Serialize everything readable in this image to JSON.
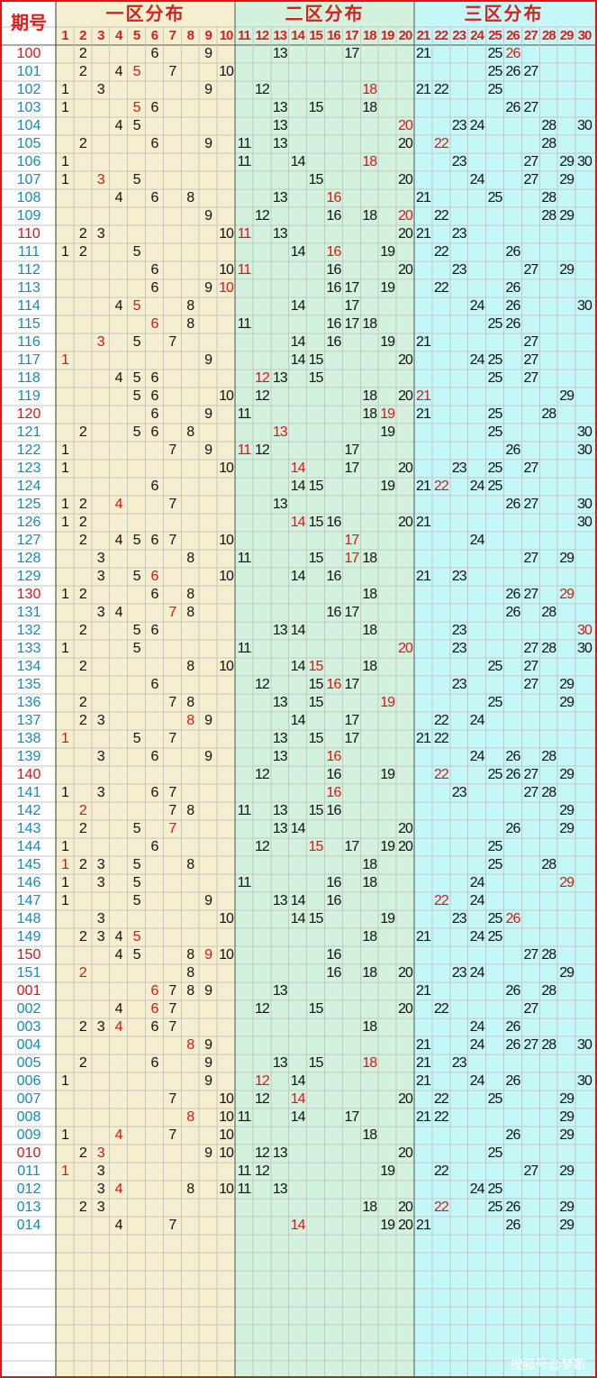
{
  "header": {
    "corner_label": "期号",
    "zones": [
      {
        "title": "一区分布",
        "start": 1,
        "end": 10,
        "bg": "#f6efcf"
      },
      {
        "title": "二区分布",
        "start": 11,
        "end": 20,
        "bg": "#d3f2dd"
      },
      {
        "title": "三区分布",
        "start": 21,
        "end": 30,
        "bg": "#c4f7f7"
      }
    ],
    "columns": [
      "1",
      "2",
      "3",
      "4",
      "5",
      "6",
      "7",
      "8",
      "9",
      "10",
      "11",
      "12",
      "13",
      "14",
      "15",
      "16",
      "17",
      "18",
      "19",
      "20",
      "21",
      "22",
      "23",
      "24",
      "25",
      "26",
      "27",
      "28",
      "29",
      "30"
    ]
  },
  "colors": {
    "border": "#e51010",
    "title_red": "#d81e1e",
    "header_blue": "#0a2a9a",
    "period_blue": "#0f8cc0",
    "period_red": "#e51010",
    "number": "#111111",
    "number_red": "#e51010",
    "grid": "#c6c6c6",
    "period_bg": "#ffffff"
  },
  "rows": [
    {
      "period": "100",
      "hot": true,
      "nums": [
        2,
        6,
        9,
        13,
        17,
        21,
        25,
        26
      ],
      "red": [
        26
      ]
    },
    {
      "period": "101",
      "hot": false,
      "nums": [
        2,
        4,
        5,
        7,
        10,
        25,
        26,
        27
      ],
      "red": [
        5
      ]
    },
    {
      "period": "102",
      "hot": false,
      "nums": [
        1,
        3,
        9,
        12,
        18,
        21,
        22,
        25
      ],
      "red": [
        18
      ]
    },
    {
      "period": "103",
      "hot": false,
      "nums": [
        1,
        5,
        6,
        13,
        15,
        18,
        26,
        27
      ],
      "red": [
        5
      ]
    },
    {
      "period": "104",
      "hot": false,
      "nums": [
        4,
        5,
        13,
        20,
        23,
        24,
        28,
        30
      ],
      "red": [
        20
      ]
    },
    {
      "period": "105",
      "hot": false,
      "nums": [
        2,
        6,
        9,
        11,
        13,
        20,
        22,
        28
      ],
      "red": [
        22
      ]
    },
    {
      "period": "106",
      "hot": false,
      "nums": [
        1,
        11,
        14,
        18,
        23,
        27,
        29,
        30
      ],
      "red": [
        18
      ]
    },
    {
      "period": "107",
      "hot": false,
      "nums": [
        1,
        3,
        5,
        15,
        20,
        24,
        27,
        29
      ],
      "red": [
        3
      ]
    },
    {
      "period": "108",
      "hot": false,
      "nums": [
        4,
        6,
        8,
        13,
        16,
        21,
        25,
        28
      ],
      "red": [
        16
      ]
    },
    {
      "period": "109",
      "hot": false,
      "nums": [
        9,
        12,
        16,
        18,
        20,
        22,
        28,
        29
      ],
      "red": [
        20
      ]
    },
    {
      "period": "110",
      "hot": true,
      "nums": [
        2,
        3,
        10,
        11,
        13,
        20,
        21,
        23
      ],
      "red": [
        11
      ]
    },
    {
      "period": "111",
      "hot": false,
      "nums": [
        1,
        2,
        5,
        14,
        16,
        19,
        22,
        26
      ],
      "red": [
        16
      ]
    },
    {
      "period": "112",
      "hot": false,
      "nums": [
        6,
        10,
        11,
        16,
        20,
        23,
        27,
        29
      ],
      "red": [
        11
      ]
    },
    {
      "period": "113",
      "hot": false,
      "nums": [
        6,
        9,
        10,
        16,
        17,
        19,
        22,
        26
      ],
      "red": [
        10
      ]
    },
    {
      "period": "114",
      "hot": false,
      "nums": [
        4,
        5,
        8,
        14,
        17,
        24,
        26,
        30
      ],
      "red": [
        5
      ]
    },
    {
      "period": "115",
      "hot": false,
      "nums": [
        6,
        8,
        11,
        16,
        17,
        18,
        25,
        26
      ],
      "red": [
        6
      ]
    },
    {
      "period": "116",
      "hot": false,
      "nums": [
        3,
        5,
        7,
        14,
        16,
        19,
        21,
        27
      ],
      "red": [
        3
      ]
    },
    {
      "period": "117",
      "hot": false,
      "nums": [
        1,
        9,
        14,
        15,
        20,
        24,
        25,
        27
      ],
      "red": [
        1
      ]
    },
    {
      "period": "118",
      "hot": false,
      "nums": [
        4,
        5,
        6,
        12,
        13,
        15,
        25,
        27
      ],
      "red": [
        12
      ]
    },
    {
      "period": "119",
      "hot": false,
      "nums": [
        5,
        6,
        10,
        12,
        18,
        20,
        21,
        29
      ],
      "red": [
        21
      ]
    },
    {
      "period": "120",
      "hot": true,
      "nums": [
        6,
        9,
        11,
        18,
        19,
        21,
        25,
        28
      ],
      "red": [
        19
      ]
    },
    {
      "period": "121",
      "hot": false,
      "nums": [
        2,
        5,
        6,
        8,
        13,
        19,
        25,
        30
      ],
      "red": [
        13
      ]
    },
    {
      "period": "122",
      "hot": false,
      "nums": [
        1,
        7,
        9,
        11,
        12,
        17,
        26,
        30
      ],
      "red": [
        11
      ]
    },
    {
      "period": "123",
      "hot": false,
      "nums": [
        1,
        10,
        14,
        17,
        20,
        23,
        25,
        27
      ],
      "red": [
        14
      ]
    },
    {
      "period": "124",
      "hot": false,
      "nums": [
        6,
        14,
        15,
        19,
        21,
        22,
        24,
        25
      ],
      "red": [
        22
      ]
    },
    {
      "period": "125",
      "hot": false,
      "nums": [
        1,
        2,
        4,
        7,
        13,
        26,
        27,
        30
      ],
      "red": [
        4
      ]
    },
    {
      "period": "126",
      "hot": false,
      "nums": [
        1,
        2,
        14,
        15,
        16,
        20,
        21,
        30
      ],
      "red": [
        14
      ]
    },
    {
      "period": "127",
      "hot": false,
      "nums": [
        2,
        4,
        5,
        6,
        7,
        10,
        17,
        24
      ],
      "red": [
        17
      ]
    },
    {
      "period": "128",
      "hot": false,
      "nums": [
        3,
        8,
        11,
        15,
        17,
        18,
        27,
        29
      ],
      "red": [
        17
      ]
    },
    {
      "period": "129",
      "hot": false,
      "nums": [
        3,
        5,
        6,
        10,
        14,
        16,
        21,
        23
      ],
      "red": [
        6
      ]
    },
    {
      "period": "130",
      "hot": true,
      "nums": [
        1,
        2,
        6,
        8,
        18,
        26,
        27,
        29
      ],
      "red": [
        29
      ]
    },
    {
      "period": "131",
      "hot": false,
      "nums": [
        3,
        4,
        7,
        8,
        16,
        17,
        26,
        28
      ],
      "red": [
        7
      ]
    },
    {
      "period": "132",
      "hot": false,
      "nums": [
        2,
        5,
        6,
        13,
        14,
        18,
        23,
        30
      ],
      "red": [
        30
      ]
    },
    {
      "period": "133",
      "hot": false,
      "nums": [
        1,
        5,
        11,
        20,
        23,
        27,
        28,
        30
      ],
      "red": [
        20
      ]
    },
    {
      "period": "134",
      "hot": false,
      "nums": [
        2,
        8,
        10,
        14,
        15,
        18,
        25,
        27
      ],
      "red": [
        15
      ]
    },
    {
      "period": "135",
      "hot": false,
      "nums": [
        6,
        12,
        15,
        16,
        17,
        23,
        27,
        29
      ],
      "red": [
        16
      ]
    },
    {
      "period": "136",
      "hot": false,
      "nums": [
        2,
        7,
        8,
        13,
        15,
        19,
        25,
        29
      ],
      "red": [
        19
      ]
    },
    {
      "period": "137",
      "hot": false,
      "nums": [
        2,
        3,
        8,
        9,
        14,
        17,
        22,
        24
      ],
      "red": [
        8
      ]
    },
    {
      "period": "138",
      "hot": false,
      "nums": [
        1,
        5,
        7,
        13,
        15,
        17,
        21,
        22
      ],
      "red": [
        1
      ]
    },
    {
      "period": "139",
      "hot": false,
      "nums": [
        3,
        6,
        9,
        13,
        16,
        24,
        26,
        28
      ],
      "red": [
        16
      ]
    },
    {
      "period": "140",
      "hot": true,
      "nums": [
        12,
        16,
        19,
        22,
        25,
        26,
        27,
        29
      ],
      "red": [
        22
      ]
    },
    {
      "period": "141",
      "hot": false,
      "nums": [
        1,
        3,
        6,
        7,
        16,
        23,
        27,
        28
      ],
      "red": [
        16
      ]
    },
    {
      "period": "142",
      "hot": false,
      "nums": [
        2,
        7,
        8,
        11,
        13,
        15,
        16,
        29
      ],
      "red": [
        2
      ]
    },
    {
      "period": "143",
      "hot": false,
      "nums": [
        2,
        5,
        7,
        13,
        14,
        20,
        26,
        29
      ],
      "red": [
        7
      ]
    },
    {
      "period": "144",
      "hot": false,
      "nums": [
        1,
        6,
        12,
        15,
        17,
        19,
        20,
        25
      ],
      "red": [
        15
      ]
    },
    {
      "period": "145",
      "hot": false,
      "nums": [
        1,
        2,
        3,
        5,
        8,
        18,
        25,
        28
      ],
      "red": [
        1
      ]
    },
    {
      "period": "146",
      "hot": false,
      "nums": [
        1,
        3,
        5,
        11,
        16,
        18,
        24,
        29
      ],
      "red": [
        29
      ]
    },
    {
      "period": "147",
      "hot": false,
      "nums": [
        1,
        5,
        9,
        13,
        14,
        16,
        22,
        24
      ],
      "red": [
        22
      ]
    },
    {
      "period": "148",
      "hot": false,
      "nums": [
        3,
        10,
        14,
        15,
        19,
        23,
        25,
        26
      ],
      "red": [
        26
      ]
    },
    {
      "period": "149",
      "hot": false,
      "nums": [
        2,
        3,
        4,
        5,
        18,
        21,
        24,
        25
      ],
      "red": [
        5
      ]
    },
    {
      "period": "150",
      "hot": true,
      "nums": [
        4,
        5,
        8,
        9,
        10,
        16,
        27,
        28
      ],
      "red": [
        9
      ]
    },
    {
      "period": "151",
      "hot": false,
      "nums": [
        2,
        8,
        16,
        18,
        20,
        23,
        24,
        29
      ],
      "red": [
        2
      ]
    },
    {
      "period": "001",
      "hot": true,
      "nums": [
        6,
        7,
        8,
        9,
        13,
        21,
        26,
        28
      ],
      "red": [
        6
      ]
    },
    {
      "period": "002",
      "hot": false,
      "nums": [
        4,
        6,
        7,
        12,
        15,
        20,
        22,
        27
      ],
      "red": [
        6
      ]
    },
    {
      "period": "003",
      "hot": false,
      "nums": [
        2,
        3,
        4,
        6,
        7,
        18,
        24,
        26
      ],
      "red": [
        4
      ]
    },
    {
      "period": "004",
      "hot": false,
      "nums": [
        8,
        9,
        21,
        24,
        26,
        27,
        28,
        30
      ],
      "red": [
        8
      ]
    },
    {
      "period": "005",
      "hot": false,
      "nums": [
        2,
        6,
        9,
        13,
        15,
        18,
        21,
        23
      ],
      "red": [
        18
      ]
    },
    {
      "period": "006",
      "hot": false,
      "nums": [
        1,
        9,
        12,
        14,
        21,
        24,
        26,
        30
      ],
      "red": [
        12
      ]
    },
    {
      "period": "007",
      "hot": false,
      "nums": [
        7,
        10,
        12,
        14,
        20,
        22,
        25,
        29
      ],
      "red": [
        14
      ]
    },
    {
      "period": "008",
      "hot": false,
      "nums": [
        8,
        10,
        11,
        14,
        17,
        21,
        22,
        29
      ],
      "red": [
        8
      ]
    },
    {
      "period": "009",
      "hot": false,
      "nums": [
        1,
        4,
        7,
        10,
        18,
        26,
        29
      ],
      "red": [
        4
      ]
    },
    {
      "period": "010",
      "hot": true,
      "nums": [
        2,
        3,
        9,
        10,
        12,
        13,
        20,
        25
      ],
      "red": [
        3
      ]
    },
    {
      "period": "011",
      "hot": false,
      "nums": [
        1,
        3,
        11,
        12,
        19,
        22,
        27,
        29
      ],
      "red": [
        1
      ]
    },
    {
      "period": "012",
      "hot": false,
      "nums": [
        3,
        4,
        8,
        10,
        11,
        13,
        24,
        25
      ],
      "red": [
        4
      ]
    },
    {
      "period": "013",
      "hot": false,
      "nums": [
        2,
        3,
        18,
        20,
        22,
        25,
        26,
        29
      ],
      "red": [
        22
      ]
    },
    {
      "period": "014",
      "hot": false,
      "nums": [
        4,
        7,
        14,
        19,
        20,
        21,
        26,
        29
      ],
      "red": [
        14
      ]
    }
  ],
  "watermark": "搜狐号@梦歌"
}
